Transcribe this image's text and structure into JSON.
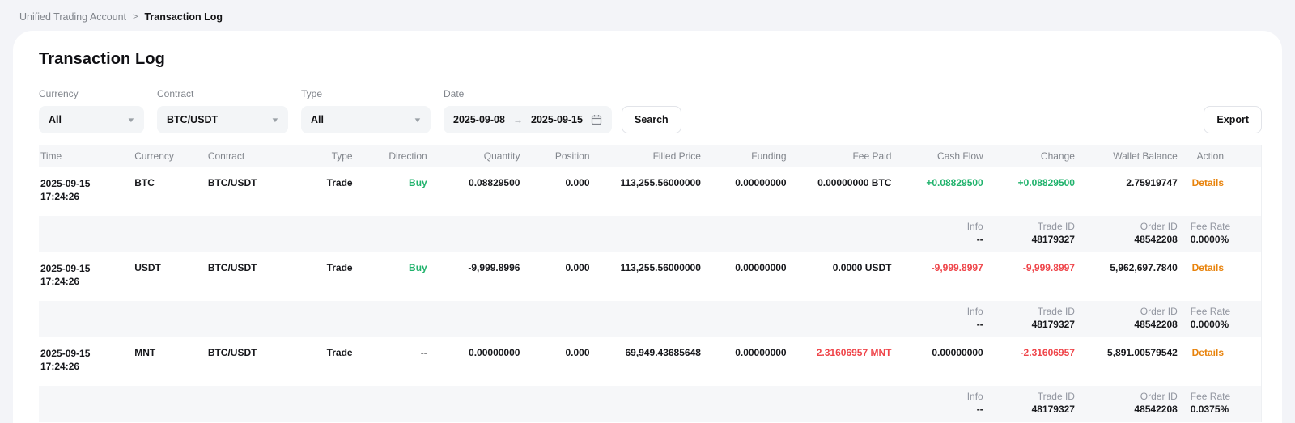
{
  "breadcrumb": {
    "root": "Unified Trading Account",
    "separator": ">",
    "current": "Transaction Log"
  },
  "page": {
    "title": "Transaction Log"
  },
  "filters": {
    "currency": {
      "label": "Currency",
      "value": "All"
    },
    "contract": {
      "label": "Contract",
      "value": "BTC/USDT"
    },
    "type": {
      "label": "Type",
      "value": "All"
    },
    "date": {
      "label": "Date",
      "from": "2025-09-08",
      "arrow": "→",
      "to": "2025-09-15"
    },
    "search_label": "Search",
    "export_label": "Export"
  },
  "colors": {
    "positive_green": "#20b26c",
    "negative_red": "#ef454a",
    "action_orange": "#e8830c"
  },
  "table": {
    "columns": [
      "Time",
      "Currency",
      "Contract",
      "Type",
      "Direction",
      "Quantity",
      "Position",
      "Filled Price",
      "Funding",
      "Fee Paid",
      "Cash Flow",
      "Change",
      "Wallet Balance",
      "Action"
    ],
    "rows": [
      {
        "time_date": "2025-09-15",
        "time_clock": "17:24:26",
        "currency": "BTC",
        "contract": "BTC/USDT",
        "type": "Trade",
        "direction": "Buy",
        "direction_color": "green",
        "quantity": "0.08829500",
        "position": "0.000",
        "filled_price": "113,255.56000000",
        "funding": "0.00000000",
        "fee_paid": "0.00000000 BTC",
        "fee_paid_color": "default",
        "cash_flow": "+0.08829500",
        "cash_flow_color": "green",
        "change": "+0.08829500",
        "change_color": "green",
        "wallet_balance": "2.75919747",
        "action": "Details",
        "info": {
          "info_label": "Info",
          "info_value": "--",
          "trade_id_label": "Trade ID",
          "trade_id": "48179327",
          "order_id_label": "Order ID",
          "order_id": "48542208",
          "fee_rate_label": "Fee Rate",
          "fee_rate": "0.0000%",
          "fee_rate_color": "default"
        }
      },
      {
        "time_date": "2025-09-15",
        "time_clock": "17:24:26",
        "currency": "USDT",
        "contract": "BTC/USDT",
        "type": "Trade",
        "direction": "Buy",
        "direction_color": "green",
        "quantity": "-9,999.8996",
        "position": "0.000",
        "filled_price": "113,255.56000000",
        "funding": "0.00000000",
        "fee_paid": "0.0000 USDT",
        "fee_paid_color": "default",
        "cash_flow": "-9,999.8997",
        "cash_flow_color": "red",
        "change": "-9,999.8997",
        "change_color": "red",
        "wallet_balance": "5,962,697.7840",
        "action": "Details",
        "info": {
          "info_label": "Info",
          "info_value": "--",
          "trade_id_label": "Trade ID",
          "trade_id": "48179327",
          "order_id_label": "Order ID",
          "order_id": "48542208",
          "fee_rate_label": "Fee Rate",
          "fee_rate": "0.0000%",
          "fee_rate_color": "default"
        }
      },
      {
        "time_date": "2025-09-15",
        "time_clock": "17:24:26",
        "currency": "MNT",
        "contract": "BTC/USDT",
        "type": "Trade",
        "direction": "--",
        "direction_color": "default",
        "quantity": "0.00000000",
        "position": "0.000",
        "filled_price": "69,949.43685648",
        "funding": "0.00000000",
        "fee_paid": "2.31606957 MNT",
        "fee_paid_color": "red",
        "cash_flow": "0.00000000",
        "cash_flow_color": "default",
        "change": "-2.31606957",
        "change_color": "red",
        "wallet_balance": "5,891.00579542",
        "action": "Details",
        "info": {
          "info_label": "Info",
          "info_value": "--",
          "trade_id_label": "Trade ID",
          "trade_id": "48179327",
          "order_id_label": "Order ID",
          "order_id": "48542208",
          "fee_rate_label": "Fee Rate",
          "fee_rate": "0.0375%",
          "fee_rate_color": "green"
        }
      }
    ]
  }
}
